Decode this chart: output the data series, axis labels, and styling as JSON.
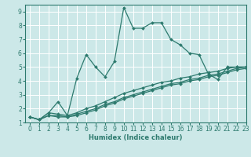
{
  "xlabel": "Humidex (Indice chaleur)",
  "ylabel": "",
  "background_color": "#cce8e8",
  "grid_color": "#ffffff",
  "line_color": "#2d7a6e",
  "xlim": [
    -0.5,
    23
  ],
  "ylim": [
    1,
    9.5
  ],
  "xticks": [
    0,
    1,
    2,
    3,
    4,
    5,
    6,
    7,
    8,
    9,
    10,
    11,
    12,
    13,
    14,
    15,
    16,
    17,
    18,
    19,
    20,
    21,
    22,
    23
  ],
  "yticks": [
    1,
    2,
    3,
    4,
    5,
    6,
    7,
    8,
    9
  ],
  "lines": [
    {
      "x": [
        0,
        1,
        2,
        3,
        4,
        5,
        6,
        7,
        8,
        9,
        10,
        11,
        12,
        13,
        14,
        15,
        16,
        17,
        18,
        19,
        20,
        21,
        22,
        23
      ],
      "y": [
        1.4,
        1.2,
        1.7,
        2.5,
        1.5,
        4.2,
        5.9,
        5.0,
        4.3,
        5.4,
        9.3,
        7.8,
        7.8,
        8.2,
        8.2,
        7.0,
        6.6,
        6.0,
        5.9,
        4.5,
        4.1,
        5.0,
        5.0,
        5.0
      ]
    },
    {
      "x": [
        0,
        1,
        2,
        3,
        4,
        5,
        6,
        7,
        8,
        9,
        10,
        11,
        12,
        13,
        14,
        15,
        16,
        17,
        18,
        19,
        20,
        21,
        22,
        23
      ],
      "y": [
        1.4,
        1.2,
        1.7,
        1.6,
        1.5,
        1.7,
        2.0,
        2.2,
        2.5,
        2.8,
        3.1,
        3.3,
        3.5,
        3.7,
        3.9,
        4.0,
        4.2,
        4.3,
        4.5,
        4.6,
        4.7,
        4.9,
        5.0,
        5.0
      ]
    },
    {
      "x": [
        0,
        1,
        2,
        3,
        4,
        5,
        6,
        7,
        8,
        9,
        10,
        11,
        12,
        13,
        14,
        15,
        16,
        17,
        18,
        19,
        20,
        21,
        22,
        23
      ],
      "y": [
        1.4,
        1.2,
        1.5,
        1.5,
        1.4,
        1.6,
        1.8,
        2.0,
        2.3,
        2.5,
        2.8,
        3.0,
        3.2,
        3.4,
        3.6,
        3.8,
        3.9,
        4.1,
        4.2,
        4.4,
        4.5,
        4.7,
        4.9,
        5.0
      ]
    },
    {
      "x": [
        0,
        1,
        2,
        3,
        4,
        5,
        6,
        7,
        8,
        9,
        10,
        11,
        12,
        13,
        14,
        15,
        16,
        17,
        18,
        19,
        20,
        21,
        22,
        23
      ],
      "y": [
        1.4,
        1.2,
        1.5,
        1.4,
        1.4,
        1.5,
        1.7,
        1.9,
        2.2,
        2.4,
        2.7,
        2.9,
        3.1,
        3.3,
        3.5,
        3.7,
        3.8,
        4.0,
        4.1,
        4.3,
        4.4,
        4.6,
        4.8,
        4.9
      ]
    }
  ],
  "marker": "D",
  "markersize": 2.0,
  "linewidth": 0.9,
  "tick_fontsize": 5.5,
  "xlabel_fontsize": 6.0
}
